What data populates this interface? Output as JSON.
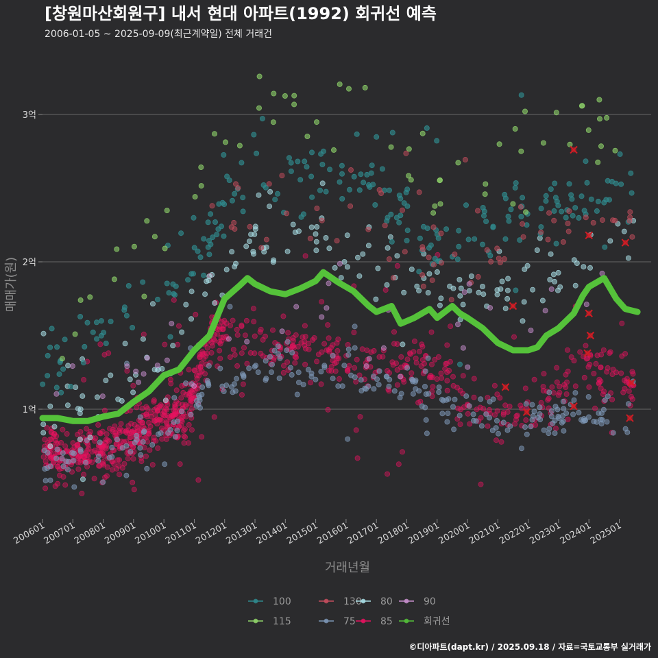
{
  "colors": {
    "background": "#2b2b2d",
    "grid": "#5b5b5d",
    "regression": "#55c23a",
    "flagged": "#d21c24"
  },
  "chart_data": {
    "type": "scatter",
    "title": "[창원마산회원구] 내서 현대 아파트(1992) 회귀선 예측",
    "subtitle": "2006-01-05 ~ 2025-09-09(최근계약일) 전체 거래건",
    "xlabel": "거래년월",
    "ylabel": "매매가(원)",
    "caption": "©디아파트(dapt.kr) / 2025.09.18 / 자료=국토교통부 실거래가",
    "xlim": [
      "2006-01",
      "2025-09"
    ],
    "ylim": [
      0.4,
      3.3
    ],
    "x_ticks": [
      "200601",
      "200701",
      "200801",
      "200901",
      "201001",
      "201101",
      "201201",
      "201301",
      "201401",
      "201501",
      "201601",
      "201701",
      "201801",
      "201901",
      "202001",
      "202101",
      "202201",
      "202301",
      "202401",
      "202501"
    ],
    "y_ticks": [
      {
        "value": 1,
        "label": "1억"
      },
      {
        "value": 2,
        "label": "2억"
      },
      {
        "value": 3,
        "label": "3억"
      }
    ],
    "grid": "horizontal",
    "legend_position": "bottom",
    "unit": "억원",
    "legend": [
      {
        "name": "100",
        "color": "#2f8a8e",
        "row": 0,
        "col": 0
      },
      {
        "name": "130",
        "color": "#c74e5e",
        "row": 0,
        "col": 1
      },
      {
        "name": "80",
        "color": "#a9dfe6",
        "row": 0,
        "col": 2
      },
      {
        "name": "90",
        "color": "#c98fcf",
        "row": 0,
        "col": 3
      },
      {
        "name": "115",
        "color": "#8fd46a",
        "row": 1,
        "col": 0
      },
      {
        "name": "75",
        "color": "#7d97b6",
        "row": 1,
        "col": 1
      },
      {
        "name": "85",
        "color": "#e6125f",
        "row": 1,
        "col": 2
      },
      {
        "name": "회귀선",
        "color": "#55c23a",
        "row": 1,
        "col": 3
      }
    ],
    "scatter_series": [
      {
        "name": "85",
        "color": "#e6125f",
        "opacity": 0.42,
        "count": 900,
        "trend": [
          [
            2006.0,
            0.68
          ],
          [
            2007.0,
            0.68
          ],
          [
            2008.0,
            0.72
          ],
          [
            2009.0,
            0.8
          ],
          [
            2010.0,
            0.92
          ],
          [
            2010.8,
            1.0
          ],
          [
            2011.5,
            1.5
          ],
          [
            2012.5,
            1.5
          ],
          [
            2014.0,
            1.42
          ],
          [
            2015.0,
            1.4
          ],
          [
            2016.5,
            1.25
          ],
          [
            2017.5,
            1.3
          ],
          [
            2018.5,
            1.3
          ],
          [
            2019.5,
            1.15
          ],
          [
            2020.0,
            1.05
          ],
          [
            2021.0,
            0.98
          ],
          [
            2022.0,
            0.98
          ],
          [
            2023.0,
            1.1
          ],
          [
            2024.0,
            1.3
          ],
          [
            2025.5,
            1.15
          ]
        ],
        "spread": 0.09,
        "noise": 0.18
      },
      {
        "name": "75",
        "color": "#7d97b6",
        "opacity": 0.55,
        "count": 260,
        "trend": [
          [
            2006.0,
            0.65
          ],
          [
            2008.0,
            0.68
          ],
          [
            2010.0,
            0.82
          ],
          [
            2011.5,
            1.15
          ],
          [
            2013.0,
            1.3
          ],
          [
            2014.5,
            1.3
          ],
          [
            2016.0,
            1.25
          ],
          [
            2018.0,
            1.1
          ],
          [
            2020.0,
            1.0
          ],
          [
            2022.0,
            0.9
          ],
          [
            2023.5,
            0.95
          ],
          [
            2025.5,
            1.0
          ]
        ],
        "spread": 0.08,
        "noise": 0.12
      },
      {
        "name": "80",
        "color": "#a9dfe6",
        "opacity": 0.55,
        "count": 160,
        "trend": [
          [
            2006.0,
            0.95
          ],
          [
            2008.0,
            1.05
          ],
          [
            2010.0,
            1.3
          ],
          [
            2012.0,
            2.05
          ],
          [
            2013.5,
            2.15
          ],
          [
            2015.0,
            2.2
          ],
          [
            2016.5,
            2.05
          ],
          [
            2018.0,
            1.9
          ],
          [
            2020.0,
            1.8
          ],
          [
            2022.0,
            1.85
          ],
          [
            2024.0,
            2.05
          ],
          [
            2025.5,
            2.05
          ]
        ],
        "spread": 0.12,
        "noise": 0.15
      },
      {
        "name": "100",
        "color": "#2f8a8e",
        "opacity": 0.65,
        "count": 230,
        "trend": [
          [
            2006.0,
            1.3
          ],
          [
            2008.0,
            1.55
          ],
          [
            2010.0,
            1.8
          ],
          [
            2011.5,
            2.2
          ],
          [
            2012.5,
            2.6
          ],
          [
            2014.0,
            2.55
          ],
          [
            2015.5,
            2.6
          ],
          [
            2017.0,
            2.5
          ],
          [
            2018.5,
            2.1
          ],
          [
            2020.0,
            2.2
          ],
          [
            2021.5,
            2.3
          ],
          [
            2023.5,
            2.4
          ],
          [
            2025.5,
            2.5
          ]
        ],
        "spread": 0.14,
        "noise": 0.18
      },
      {
        "name": "115",
        "color": "#8fd46a",
        "opacity": 0.6,
        "count": 65,
        "trend": [
          [
            2006.0,
            1.5
          ],
          [
            2008.0,
            1.75
          ],
          [
            2010.0,
            2.15
          ],
          [
            2012.0,
            2.9
          ],
          [
            2014.0,
            3.15
          ],
          [
            2015.5,
            3.05
          ],
          [
            2017.0,
            3.0
          ],
          [
            2019.0,
            2.45
          ],
          [
            2021.0,
            2.7
          ],
          [
            2023.0,
            2.9
          ],
          [
            2025.0,
            2.9
          ]
        ],
        "spread": 0.15,
        "noise": 0.18
      },
      {
        "name": "130",
        "color": "#c74e5e",
        "opacity": 0.5,
        "count": 70,
        "trend": [
          [
            2011.5,
            2.2
          ],
          [
            2013.0,
            2.35
          ],
          [
            2015.0,
            2.4
          ],
          [
            2017.0,
            2.3
          ],
          [
            2019.0,
            2.05
          ],
          [
            2021.0,
            2.0
          ],
          [
            2023.0,
            2.3
          ],
          [
            2025.5,
            2.2
          ]
        ],
        "spread": 0.15,
        "noise": 0.12
      },
      {
        "name": "90",
        "color": "#c98fcf",
        "opacity": 0.5,
        "count": 40,
        "trend": [
          [
            2006.0,
            0.95
          ],
          [
            2010.0,
            1.3
          ],
          [
            2014.0,
            1.6
          ],
          [
            2018.0,
            1.55
          ],
          [
            2022.0,
            1.6
          ],
          [
            2025.5,
            1.9
          ]
        ],
        "spread": 0.15,
        "noise": 0.12
      }
    ],
    "flagged_points": [
      {
        "x": 2021.25,
        "y": 1.15
      },
      {
        "x": 2021.5,
        "y": 1.7
      },
      {
        "x": 2021.95,
        "y": 0.98
      },
      {
        "x": 2023.5,
        "y": 2.76
      },
      {
        "x": 2024.0,
        "y": 2.18
      },
      {
        "x": 2024.0,
        "y": 1.65
      },
      {
        "x": 2024.05,
        "y": 1.5
      },
      {
        "x": 2023.95,
        "y": 1.38
      },
      {
        "x": 2025.2,
        "y": 2.13
      },
      {
        "x": 2025.4,
        "y": 1.18
      },
      {
        "x": 2025.35,
        "y": 0.94
      },
      {
        "x": 2023.5,
        "y": 1.02
      }
    ],
    "regression_line": {
      "name": "회귀선",
      "points": [
        [
          2006.0,
          0.94
        ],
        [
          2006.5,
          0.94
        ],
        [
          2007.0,
          0.92
        ],
        [
          2007.5,
          0.92
        ],
        [
          2008.0,
          0.95
        ],
        [
          2008.5,
          0.97
        ],
        [
          2009.0,
          1.05
        ],
        [
          2009.5,
          1.12
        ],
        [
          2010.0,
          1.23
        ],
        [
          2010.5,
          1.27
        ],
        [
          2011.0,
          1.4
        ],
        [
          2011.5,
          1.5
        ],
        [
          2012.0,
          1.75
        ],
        [
          2012.5,
          1.84
        ],
        [
          2012.75,
          1.89
        ],
        [
          2013.0,
          1.85
        ],
        [
          2013.5,
          1.8
        ],
        [
          2014.0,
          1.78
        ],
        [
          2014.5,
          1.82
        ],
        [
          2015.0,
          1.87
        ],
        [
          2015.25,
          1.93
        ],
        [
          2015.75,
          1.86
        ],
        [
          2016.25,
          1.8
        ],
        [
          2016.75,
          1.7
        ],
        [
          2017.0,
          1.66
        ],
        [
          2017.5,
          1.7
        ],
        [
          2017.8,
          1.58
        ],
        [
          2018.25,
          1.62
        ],
        [
          2018.75,
          1.68
        ],
        [
          2019.0,
          1.62
        ],
        [
          2019.5,
          1.7
        ],
        [
          2019.75,
          1.65
        ],
        [
          2020.0,
          1.62
        ],
        [
          2020.5,
          1.55
        ],
        [
          2021.0,
          1.45
        ],
        [
          2021.5,
          1.4
        ],
        [
          2022.0,
          1.4
        ],
        [
          2022.3,
          1.42
        ],
        [
          2022.6,
          1.5
        ],
        [
          2023.0,
          1.55
        ],
        [
          2023.5,
          1.65
        ],
        [
          2023.8,
          1.77
        ],
        [
          2024.0,
          1.83
        ],
        [
          2024.5,
          1.89
        ],
        [
          2024.9,
          1.75
        ],
        [
          2025.2,
          1.68
        ],
        [
          2025.6,
          1.66
        ]
      ]
    }
  }
}
